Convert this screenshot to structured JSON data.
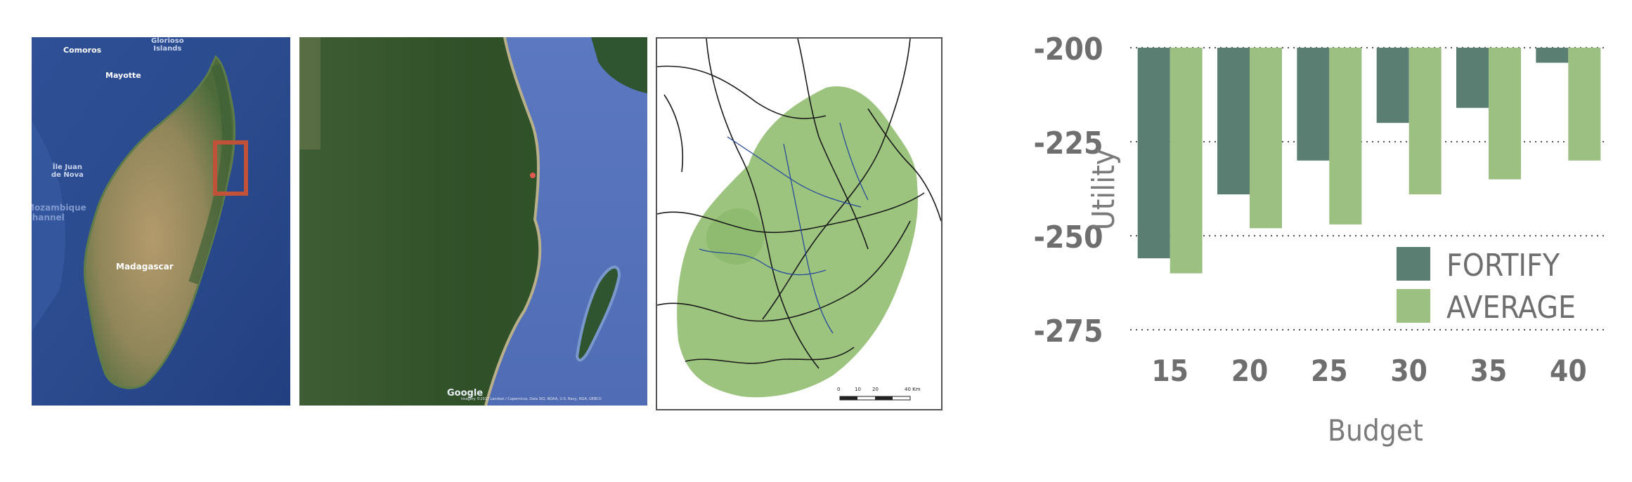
{
  "maps": {
    "panel1": {
      "labels": {
        "comoros": "Comoros",
        "glorioso": "Glorioso\nIslands",
        "mayotte": "Mayotte",
        "juan": "Île Juan\nde Nova",
        "mozambique": "Mozambique\nChannel",
        "madagascar": "Madagascar"
      }
    },
    "panel2": {
      "google": "Google",
      "attribution": "Imagery ©2017 Landsat / Copernicus, Data SIO, NOAA, U.S. Navy, NGA, GEBCO"
    },
    "panel3": {
      "scale_labels": [
        "0",
        "10",
        "20",
        "40 Km"
      ]
    }
  },
  "chart_data": {
    "type": "bar",
    "categories": [
      "15",
      "20",
      "25",
      "30",
      "35",
      "40"
    ],
    "series": [
      {
        "name": "FORTIFY",
        "color": "#5a7f72",
        "values": [
          -256,
          -239,
          -230,
          -220,
          -216,
          -204
        ]
      },
      {
        "name": "AVERAGE",
        "color": "#9cbf82",
        "values": [
          -260,
          -248,
          -247,
          -239,
          -235,
          -230
        ]
      }
    ],
    "xlabel": "Budget",
    "ylabel": "Utility",
    "ylim": [
      -275,
      -200
    ],
    "yticks": [
      -200,
      -225,
      -250,
      -275
    ],
    "grid": "dotted horizontal",
    "legend": "bottom-right"
  }
}
